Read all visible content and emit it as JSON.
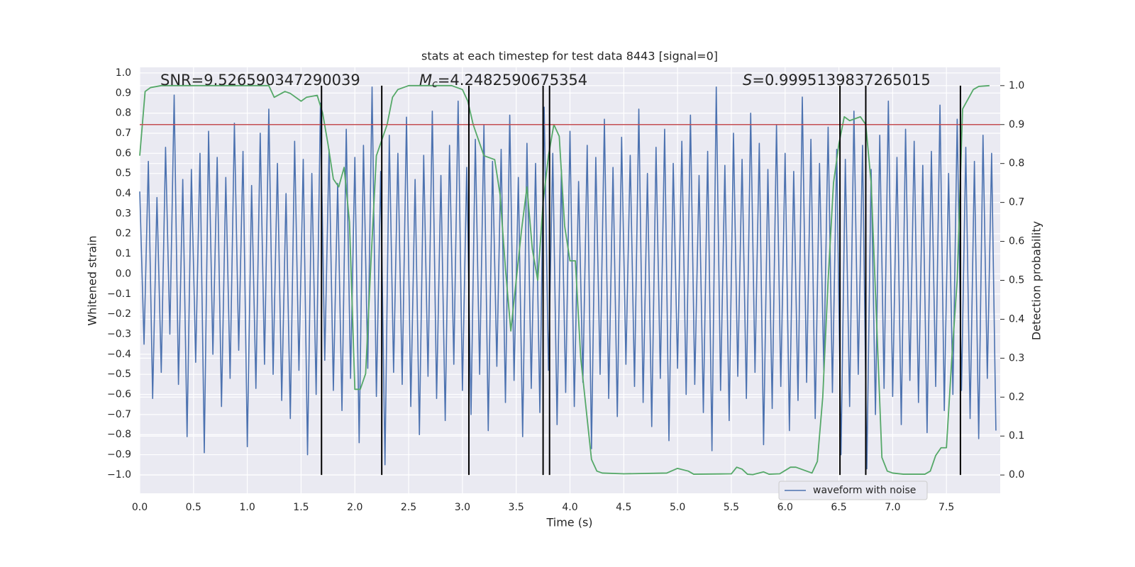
{
  "chart_data": {
    "type": "line",
    "title": "stats at each timestep for test data 8443 [signal=0]",
    "xlabel": "Time (s)",
    "ylabel": "Whitened strain",
    "y2label": "Detection probability",
    "annotations": [
      {
        "text": "SNR=9.526590347290039"
      },
      {
        "symbol": "M",
        "subscript": "c",
        "text": "=4.2482590675354"
      },
      {
        "symbol": "S",
        "text": "=0.9995139837265015"
      }
    ],
    "xlim": [
      0,
      8.0
    ],
    "ylim": [
      -1.092,
      1.028
    ],
    "y2lim": [
      -0.047,
      1.047
    ],
    "xticks": [
      {
        "value": 0,
        "label": "0.0"
      },
      0.5,
      {
        "value": 1,
        "label": "1.0"
      },
      1.5,
      {
        "value": 2,
        "label": "2.0"
      },
      2.5,
      {
        "value": 3,
        "label": "3.0"
      },
      3.5,
      {
        "value": 4,
        "label": "4.0"
      },
      4.5,
      {
        "value": 5,
        "label": "5.0"
      },
      5.5,
      {
        "value": 6,
        "label": "6.0"
      },
      6.5,
      {
        "value": 7,
        "label": "7.0"
      },
      7.5
    ],
    "yticks": [
      {
        "value": 1,
        "label": "1.0"
      },
      {
        "value": 0.9,
        "label": "0.9"
      },
      {
        "value": 0.8,
        "label": "0.8"
      },
      {
        "value": 0.7,
        "label": "0.7"
      },
      {
        "value": 0.6,
        "label": "0.6"
      },
      {
        "value": 0.5,
        "label": "0.5"
      },
      {
        "value": 0.4,
        "label": "0.4"
      },
      {
        "value": 0.3,
        "label": "0.3"
      },
      {
        "value": 0.2,
        "label": "0.2"
      },
      {
        "value": 0.1,
        "label": "0.1"
      },
      {
        "value": 0,
        "label": "0.0"
      },
      {
        "value": -0.1,
        "label": "−0.1"
      },
      {
        "value": -0.2,
        "label": "−0.2"
      },
      {
        "value": -0.3,
        "label": "−0.3"
      },
      {
        "value": -0.4,
        "label": "−0.4"
      },
      {
        "value": -0.5,
        "label": "−0.5"
      },
      {
        "value": -0.6,
        "label": "−0.6"
      },
      {
        "value": -0.7,
        "label": "−0.7"
      },
      {
        "value": -0.8,
        "label": "−0.8"
      },
      {
        "value": -0.9,
        "label": "−0.9"
      },
      {
        "value": -1,
        "label": "−1.0"
      }
    ],
    "y2ticks": [
      {
        "value": 0,
        "label": "0.0"
      },
      0.1,
      0.2,
      0.3,
      0.4,
      0.5,
      0.6,
      0.7,
      0.8,
      0.9,
      {
        "value": 1,
        "label": "1.0"
      }
    ],
    "grid": true,
    "legend": "lower right",
    "series": [
      {
        "name": "waveform with noise",
        "color": "#4c72b0",
        "x": [
          0,
          0.04,
          0.08,
          0.12,
          0.16,
          0.2,
          0.24,
          0.28,
          0.32,
          0.36,
          0.4,
          0.44,
          0.48,
          0.52,
          0.56,
          0.6,
          0.64,
          0.68,
          0.72,
          0.76,
          0.8,
          0.84,
          0.88,
          0.92,
          0.96,
          1,
          1.04,
          1.08,
          1.12,
          1.16,
          1.2,
          1.24,
          1.28,
          1.32,
          1.36,
          1.4,
          1.44,
          1.48,
          1.52,
          1.56,
          1.6,
          1.64,
          1.68,
          1.72,
          1.76,
          1.8,
          1.84,
          1.88,
          1.92,
          1.96,
          2,
          2.04,
          2.08,
          2.12,
          2.16,
          2.2,
          2.24,
          2.28,
          2.32,
          2.36,
          2.4,
          2.44,
          2.48,
          2.52,
          2.56,
          2.6,
          2.64,
          2.68,
          2.72,
          2.76,
          2.8,
          2.84,
          2.88,
          2.92,
          2.96,
          3,
          3.04,
          3.08,
          3.12,
          3.16,
          3.2,
          3.24,
          3.28,
          3.32,
          3.36,
          3.4,
          3.44,
          3.48,
          3.52,
          3.56,
          3.6,
          3.64,
          3.68,
          3.72,
          3.76,
          3.8,
          3.84,
          3.88,
          3.92,
          3.96,
          4,
          4.04,
          4.08,
          4.12,
          4.16,
          4.2,
          4.24,
          4.28,
          4.32,
          4.36,
          4.4,
          4.44,
          4.48,
          4.52,
          4.56,
          4.6,
          4.64,
          4.68,
          4.72,
          4.76,
          4.8,
          4.84,
          4.88,
          4.92,
          4.96,
          5,
          5.04,
          5.08,
          5.12,
          5.16,
          5.2,
          5.24,
          5.28,
          5.32,
          5.36,
          5.4,
          5.44,
          5.48,
          5.52,
          5.56,
          5.6,
          5.64,
          5.68,
          5.72,
          5.76,
          5.8,
          5.84,
          5.88,
          5.92,
          5.96,
          6,
          6.04,
          6.08,
          6.12,
          6.16,
          6.2,
          6.24,
          6.28,
          6.32,
          6.36,
          6.4,
          6.44,
          6.48,
          6.52,
          6.56,
          6.6,
          6.64,
          6.68,
          6.72,
          6.76,
          6.8,
          6.84,
          6.88,
          6.92,
          6.96,
          7,
          7.04,
          7.08,
          7.12,
          7.16,
          7.2,
          7.24,
          7.28,
          7.32,
          7.36,
          7.4,
          7.44,
          7.48,
          7.52,
          7.56,
          7.6,
          7.64,
          7.68,
          7.72,
          7.76,
          7.8,
          7.84,
          7.88,
          7.92,
          7.96
        ],
        "values": [
          0.41,
          -0.35,
          0.56,
          -0.62,
          0.38,
          -0.49,
          0.63,
          -0.3,
          0.89,
          -0.55,
          0.47,
          -0.81,
          0.52,
          -0.44,
          0.6,
          -0.89,
          0.71,
          -0.4,
          0.58,
          -0.66,
          0.48,
          -0.52,
          0.75,
          -0.38,
          0.61,
          -0.86,
          0.44,
          -0.57,
          0.7,
          -0.45,
          0.82,
          -0.5,
          0.55,
          -0.63,
          0.4,
          -0.72,
          0.66,
          -0.48,
          0.57,
          -0.9,
          0.5,
          -0.6,
          0.85,
          -0.43,
          0.62,
          -0.58,
          0.45,
          -0.68,
          0.72,
          -0.52,
          0.58,
          -0.84,
          0.64,
          -0.47,
          0.93,
          -0.61,
          0.51,
          -0.95,
          0.69,
          -0.49,
          0.6,
          -0.55,
          0.78,
          -0.66,
          0.47,
          -0.8,
          0.59,
          -0.51,
          0.81,
          -0.62,
          0.49,
          -0.73,
          0.64,
          -0.45,
          0.86,
          -0.58,
          0.53,
          -0.7,
          0.67,
          -0.5,
          0.74,
          -0.78,
          0.56,
          -0.46,
          0.62,
          -0.64,
          0.79,
          -0.53,
          0.48,
          -0.81,
          0.65,
          -0.57,
          0.55,
          -0.69,
          0.83,
          -0.48,
          0.6,
          -0.75,
          0.52,
          -0.59,
          0.71,
          -0.66,
          0.46,
          -0.54,
          0.64,
          -0.87,
          0.58,
          -0.5,
          0.77,
          -0.62,
          0.53,
          -0.71,
          0.68,
          -0.45,
          0.59,
          -0.56,
          0.82,
          -0.64,
          0.5,
          -0.76,
          0.63,
          -0.52,
          0.72,
          -0.83,
          0.55,
          -0.47,
          0.66,
          -0.6,
          0.79,
          -0.55,
          0.49,
          -0.69,
          0.61,
          -0.88,
          0.93,
          -0.58,
          0.54,
          -0.73,
          0.7,
          -0.51,
          0.57,
          -0.62,
          0.8,
          -0.49,
          0.65,
          -0.85,
          0.52,
          -0.67,
          0.74,
          -0.56,
          0.6,
          -0.78,
          0.51,
          -0.63,
          0.88,
          -0.54,
          0.67,
          -0.72,
          0.55,
          -0.48,
          0.73,
          -0.59,
          0.62,
          -0.9,
          0.57,
          -0.66,
          0.81,
          -0.5,
          0.64,
          -0.97,
          0.52,
          -0.7,
          0.69,
          -0.57,
          0.86,
          -0.61,
          0.58,
          -0.75,
          0.72,
          -0.53,
          0.66,
          -0.64,
          0.54,
          -0.79,
          0.61,
          -0.56,
          0.84,
          -0.68,
          0.5,
          -0.6,
          0.77,
          -0.58,
          0.63,
          -0.72,
          0.56,
          -0.82,
          0.69,
          -0.52,
          0.6,
          -0.78
        ]
      },
      {
        "color": "#55a868",
        "axis": "y2",
        "x": [
          0,
          0.05,
          0.1,
          0.2,
          1.2,
          1.25,
          1.35,
          1.4,
          1.5,
          1.55,
          1.65,
          1.7,
          1.75,
          1.8,
          1.85,
          1.9,
          1.95,
          2.0,
          2.05,
          2.1,
          2.15,
          2.2,
          2.3,
          2.35,
          2.4,
          2.5,
          2.9,
          3.0,
          3.05,
          3.1,
          3.2,
          3.3,
          3.35,
          3.4,
          3.45,
          3.5,
          3.55,
          3.6,
          3.65,
          3.7,
          3.75,
          3.8,
          3.85,
          3.9,
          3.95,
          4.0,
          4.05,
          4.1,
          4.2,
          4.25,
          4.3,
          4.5,
          4.9,
          5.0,
          5.1,
          5.15,
          5.5,
          5.55,
          5.6,
          5.65,
          5.7,
          5.8,
          5.85,
          5.95,
          6.05,
          6.1,
          6.2,
          6.25,
          6.3,
          6.35,
          6.4,
          6.45,
          6.5,
          6.55,
          6.6,
          6.7,
          6.75,
          6.8,
          6.85,
          6.9,
          6.95,
          7.0,
          7.1,
          7.3,
          7.35,
          7.4,
          7.45,
          7.5,
          7.55,
          7.6,
          7.65,
          7.75,
          7.8,
          7.9
        ],
        "values": [
          0.82,
          0.985,
          0.995,
          1.0,
          1.0,
          0.97,
          0.985,
          0.98,
          0.96,
          0.97,
          0.975,
          0.93,
          0.85,
          0.76,
          0.74,
          0.79,
          0.65,
          0.22,
          0.22,
          0.26,
          0.55,
          0.82,
          0.9,
          0.97,
          0.99,
          1.0,
          1.0,
          0.99,
          0.96,
          0.9,
          0.82,
          0.81,
          0.72,
          0.53,
          0.37,
          0.5,
          0.63,
          0.74,
          0.58,
          0.5,
          0.7,
          0.82,
          0.9,
          0.87,
          0.64,
          0.55,
          0.55,
          0.3,
          0.04,
          0.01,
          0.005,
          0.003,
          0.005,
          0.017,
          0.01,
          0.002,
          0.003,
          0.02,
          0.015,
          0.002,
          0.001,
          0.008,
          0.002,
          0.003,
          0.02,
          0.02,
          0.01,
          0.005,
          0.035,
          0.2,
          0.5,
          0.75,
          0.85,
          0.92,
          0.91,
          0.92,
          0.9,
          0.75,
          0.4,
          0.045,
          0.01,
          0.005,
          0.002,
          0.002,
          0.01,
          0.05,
          0.07,
          0.07,
          0.3,
          0.5,
          0.94,
          0.99,
          0.998,
          1.0
        ]
      }
    ],
    "hline": {
      "y": 0.9,
      "axis": "y2",
      "color": "#c44e52"
    },
    "vlines": {
      "x": [
        1.69,
        2.25,
        3.06,
        3.75,
        3.81,
        6.51,
        6.75,
        7.63
      ],
      "ymin": 0,
      "ymax": 1,
      "axis": "y2",
      "color": "#000000"
    }
  }
}
